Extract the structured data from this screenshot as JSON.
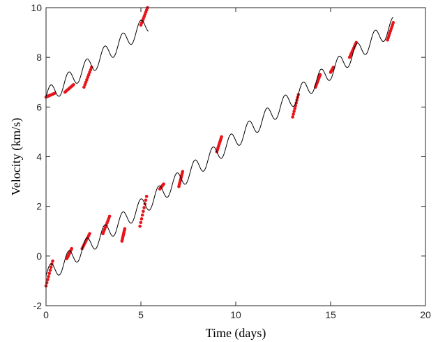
{
  "chart_data": {
    "type": "line",
    "title": "",
    "xlabel": "Time (days)",
    "ylabel": "Velocity (km/s)",
    "xlim": [
      0,
      20
    ],
    "ylim": [
      -2,
      10
    ],
    "xticks": [
      0,
      5,
      10,
      15,
      20
    ],
    "yticks": [
      -2,
      0,
      2,
      4,
      6,
      8,
      10
    ],
    "grid": false,
    "legend": "none",
    "colors": {
      "model": "#000000",
      "observed": "#e8141a",
      "axes": "#262626"
    },
    "model_curves": [
      {
        "slope": 0.55,
        "intercept": -0.8,
        "amplitude": 0.35,
        "period_days": 0.95,
        "x_start": 0.0,
        "x_end": 18.3
      },
      {
        "slope": 0.55,
        "intercept": 6.4,
        "amplitude": 0.35,
        "period_days": 0.95,
        "x_start": 0.0,
        "x_end": 5.4
      }
    ],
    "observations": [
      {
        "x_start": 0.0,
        "x_end": 0.35,
        "y_start": -1.2,
        "y_end": -0.2
      },
      {
        "x_start": 1.1,
        "x_end": 1.35,
        "y_start": -0.1,
        "y_end": 0.3
      },
      {
        "x_start": 1.9,
        "x_end": 2.3,
        "y_start": 0.3,
        "y_end": 0.9
      },
      {
        "x_start": 3.0,
        "x_end": 3.35,
        "y_start": 0.9,
        "y_end": 1.6
      },
      {
        "x_start": 4.0,
        "x_end": 4.15,
        "y_start": 0.6,
        "y_end": 1.1
      },
      {
        "x_start": 4.95,
        "x_end": 5.3,
        "y_start": 1.2,
        "y_end": 2.4
      },
      {
        "x_start": 6.0,
        "x_end": 6.2,
        "y_start": 2.7,
        "y_end": 2.9
      },
      {
        "x_start": 7.0,
        "x_end": 7.2,
        "y_start": 2.8,
        "y_end": 3.4
      },
      {
        "x_start": 9.0,
        "x_end": 9.25,
        "y_start": 4.2,
        "y_end": 4.8
      },
      {
        "x_start": 13.0,
        "x_end": 13.3,
        "y_start": 5.6,
        "y_end": 6.5
      },
      {
        "x_start": 14.2,
        "x_end": 14.45,
        "y_start": 6.8,
        "y_end": 7.3
      },
      {
        "x_start": 15.0,
        "x_end": 15.15,
        "y_start": 7.4,
        "y_end": 7.6
      },
      {
        "x_start": 16.0,
        "x_end": 16.35,
        "y_start": 8.0,
        "y_end": 8.6
      },
      {
        "x_start": 18.0,
        "x_end": 18.3,
        "y_start": 8.7,
        "y_end": 9.4
      },
      {
        "x_start": 0.0,
        "x_end": 0.45,
        "y_start": 6.4,
        "y_end": 6.55
      },
      {
        "x_start": 1.0,
        "x_end": 1.45,
        "y_start": 6.6,
        "y_end": 6.9
      },
      {
        "x_start": 2.0,
        "x_end": 2.4,
        "y_start": 6.8,
        "y_end": 7.6
      },
      {
        "x_start": 5.0,
        "x_end": 5.35,
        "y_start": 9.3,
        "y_end": 10.0
      }
    ]
  }
}
